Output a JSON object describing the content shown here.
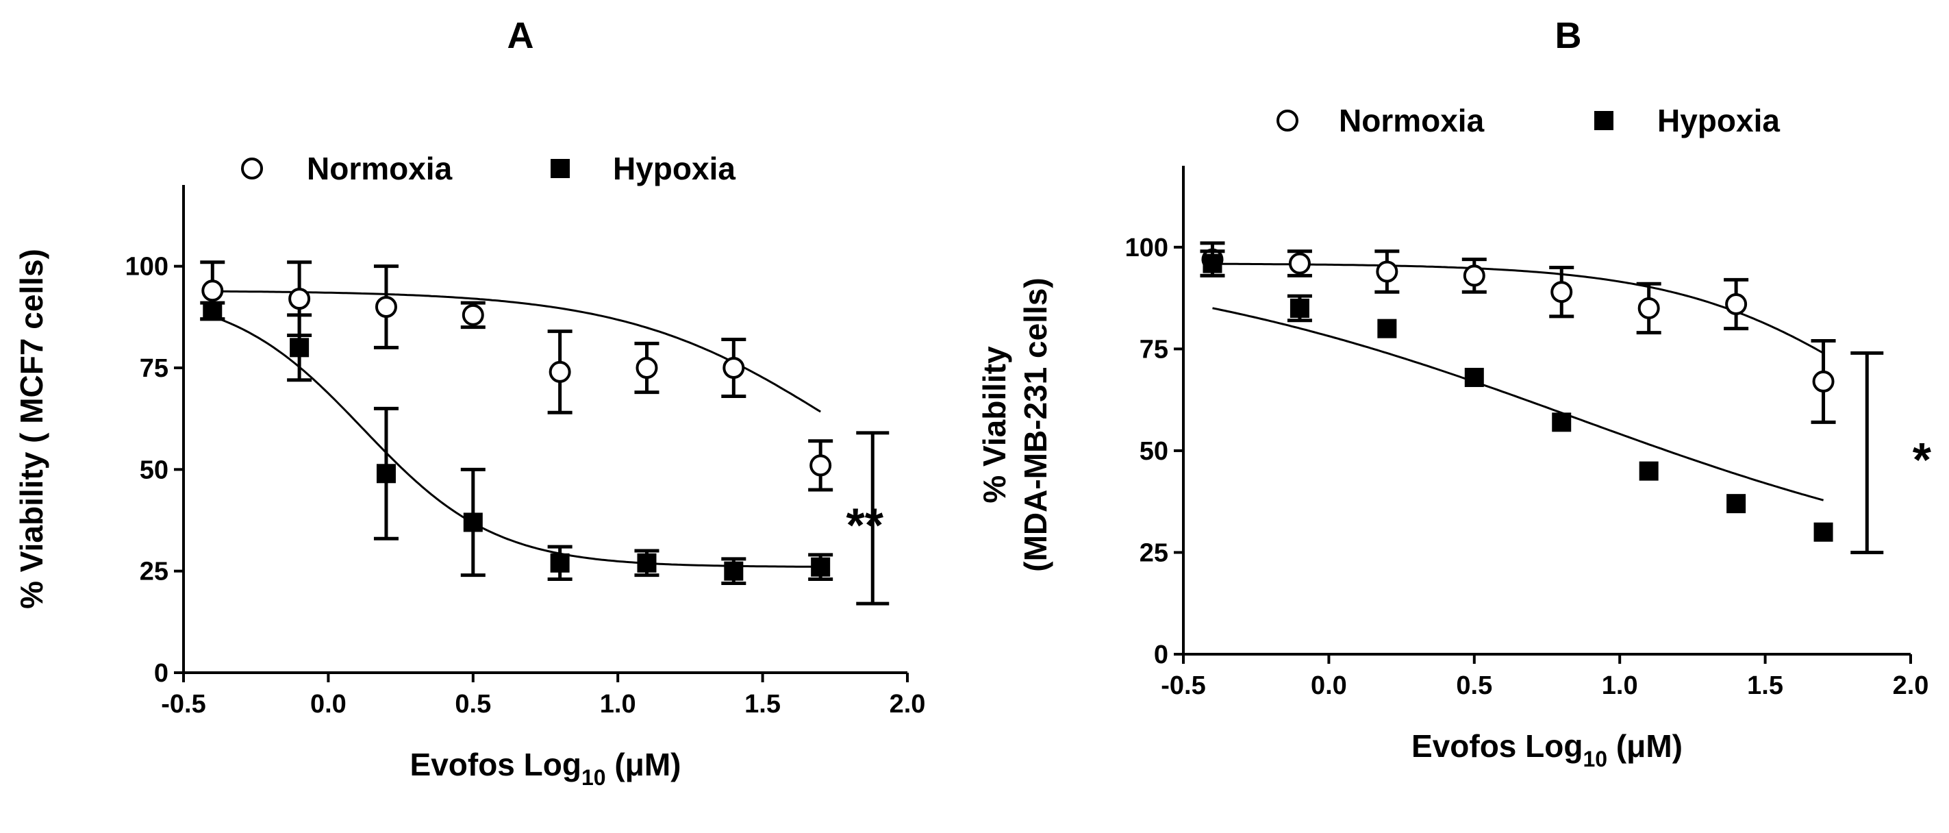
{
  "chart_data": [
    {
      "type": "scatter",
      "panel_label": "A",
      "xlabel": "Evofos Log",
      "xlabel_sub": "10",
      "xlabel_unit": " (μM)",
      "ylabel": "% Viability ( MCF7 cells)",
      "ylabel_lines": [
        "% Viability ( MCF7 cells)"
      ],
      "xlim": [
        -0.5,
        2.0
      ],
      "ylim": [
        0,
        120
      ],
      "xticks": [
        -0.5,
        0.0,
        0.5,
        1.0,
        1.5,
        2.0
      ],
      "xtick_labels": [
        "-0.5",
        "0.0",
        "0.5",
        "1.0",
        "1.5",
        "2.0"
      ],
      "yticks": [
        0,
        25,
        50,
        75,
        100
      ],
      "ytick_labels": [
        "0",
        "25",
        "50",
        "75",
        "100"
      ],
      "legend": [
        "Normoxia",
        "Hypoxia"
      ],
      "legend_position": "top",
      "series": [
        {
          "name": "Normoxia",
          "marker": "open-circle",
          "x": [
            -0.4,
            -0.1,
            0.2,
            0.5,
            0.8,
            1.1,
            1.4,
            1.7
          ],
          "y": [
            94,
            92,
            90,
            88,
            74,
            75,
            75,
            51
          ],
          "err": [
            7,
            9,
            10,
            3,
            10,
            6,
            7,
            6
          ],
          "fit": {
            "bottom": 30,
            "top": 94,
            "logEC50": 1.75,
            "hill": 1.2
          }
        },
        {
          "name": "Hypoxia",
          "marker": "filled-square",
          "x": [
            -0.4,
            -0.1,
            0.2,
            0.5,
            0.8,
            1.1,
            1.4,
            1.7
          ],
          "y": [
            89,
            80,
            49,
            37,
            27,
            27,
            25,
            26
          ],
          "err": [
            2,
            8,
            16,
            13,
            4,
            3,
            3,
            3
          ],
          "fit": {
            "bottom": 26,
            "top": 94,
            "logEC50": 0.12,
            "hill": 1.9
          }
        }
      ],
      "significance": {
        "label": "**",
        "x": 1.88,
        "y_range": [
          17,
          59
        ]
      }
    },
    {
      "type": "scatter",
      "panel_label": "B",
      "xlabel": "Evofos Log",
      "xlabel_sub": "10",
      "xlabel_unit": " (μM)",
      "ylabel": "% Viability (MDA-MB-231 cells)",
      "ylabel_lines": [
        "% Viability",
        "(MDA-MB-231 cells)"
      ],
      "xlim": [
        -0.5,
        2.0
      ],
      "ylim": [
        0,
        120
      ],
      "xticks": [
        -0.5,
        0.0,
        0.5,
        1.0,
        1.5,
        2.0
      ],
      "xtick_labels": [
        "-0.5",
        "0.0",
        "0.5",
        "1.0",
        "1.5",
        "2.0"
      ],
      "yticks": [
        0,
        25,
        50,
        75,
        100
      ],
      "ytick_labels": [
        "0",
        "25",
        "50",
        "75",
        "100"
      ],
      "legend": [
        "Normoxia",
        "Hypoxia"
      ],
      "legend_position": "top",
      "series": [
        {
          "name": "Normoxia",
          "marker": "open-circle",
          "x": [
            -0.4,
            -0.1,
            0.2,
            0.5,
            0.8,
            1.1,
            1.4,
            1.7
          ],
          "y": [
            97,
            96,
            94,
            93,
            89,
            85,
            86,
            67
          ],
          "err": [
            4,
            3,
            5,
            4,
            6,
            6,
            6,
            10
          ],
          "fit": {
            "bottom": 30,
            "top": 96,
            "logEC50": 1.95,
            "hill": 1.2
          }
        },
        {
          "name": "Hypoxia",
          "marker": "filled-square",
          "x": [
            -0.4,
            -0.1,
            0.2,
            0.5,
            0.8,
            1.1,
            1.4,
            1.7
          ],
          "y": [
            96,
            85,
            80,
            68,
            57,
            45,
            37,
            30
          ],
          "err": [
            3,
            3,
            0,
            0,
            0,
            0,
            0,
            0
          ],
          "fit": {
            "bottom": 17,
            "top": 99,
            "logEC50": 0.85,
            "hill": 0.55
          }
        }
      ],
      "significance": {
        "label": "*",
        "x": 1.85,
        "y_range": [
          25,
          74
        ]
      }
    }
  ]
}
